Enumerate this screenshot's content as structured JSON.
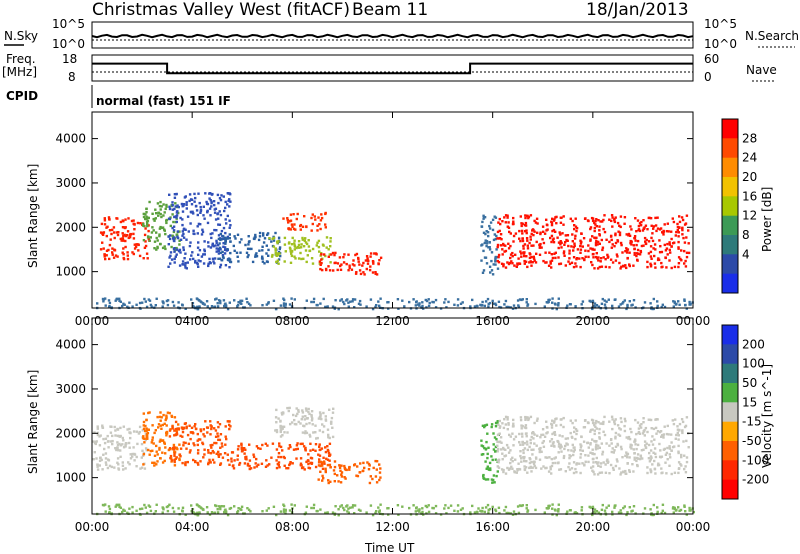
{
  "header": {
    "title": "Christmas Valley West (fitACF)",
    "beam": "Beam 11",
    "date": "18/Jan/2013",
    "cpid_label": "CPID",
    "cpid_value": "normal (fast) 151 IF"
  },
  "chart_data": [
    {
      "type": "line",
      "name": "noise-panel",
      "left_label": "N.Sky",
      "right_label": "N.Search",
      "left_ticks": [
        "10^5",
        "10^0"
      ],
      "right_ticks": [
        "10^5",
        "10^0"
      ],
      "scale": "log"
    },
    {
      "type": "line",
      "name": "freq-panel",
      "left_label": "Freq.",
      "left_unit": "[MHz]",
      "right_label": "Nave",
      "left_ticks": [
        18,
        8
      ],
      "right_ticks": [
        60,
        0
      ],
      "freq_steps": [
        {
          "x_hours": 0,
          "value": 14.7
        },
        {
          "x_hours": 3,
          "value": 11.0
        },
        {
          "x_hours": 15.1,
          "value": 14.7
        },
        {
          "x_hours": 24,
          "value": 14.7
        }
      ],
      "nave_level": 12
    },
    {
      "type": "heatmap",
      "name": "power",
      "ylabel": "Slant Range [km]",
      "xlabel": "Time UT",
      "xlim_hours": [
        0,
        24
      ],
      "ylim_km": [
        180,
        4600
      ],
      "y_ticks": [
        1000,
        2000,
        3000,
        4000
      ],
      "x_ticks": [
        "00:00",
        "04:00",
        "08:00",
        "12:00",
        "16:00",
        "20:00",
        "00:00"
      ],
      "colorbar": {
        "label": "Power [dB]",
        "ticks": [
          28,
          24,
          20,
          16,
          12,
          8,
          4
        ],
        "colors": [
          "#ff0000",
          "#ff4a00",
          "#ff8c00",
          "#f2c200",
          "#a8c800",
          "#3c9a56",
          "#2e7a7a",
          "#2c4aa8",
          "#1a2ee8"
        ]
      },
      "regions": [
        {
          "t": [
            0.3,
            2.3
          ],
          "r": [
            1300,
            2250
          ],
          "c": "#ff2000"
        },
        {
          "t": [
            2.0,
            3.5
          ],
          "r": [
            1500,
            2600
          ],
          "c": "#5aa03c"
        },
        {
          "t": [
            3.0,
            5.5
          ],
          "r": [
            1100,
            2800
          ],
          "c": "#3050b8"
        },
        {
          "t": [
            5.0,
            7.5
          ],
          "r": [
            1200,
            1900
          ],
          "c": "#2a60a0"
        },
        {
          "t": [
            7.0,
            9.5
          ],
          "r": [
            1200,
            1800
          ],
          "c": "#a0c020"
        },
        {
          "t": [
            9.0,
            11.5
          ],
          "r": [
            950,
            1450
          ],
          "c": "#ff1a00"
        },
        {
          "t": [
            7.6,
            9.4
          ],
          "r": [
            1950,
            2350
          ],
          "c": "#ff3000"
        },
        {
          "t": [
            15.5,
            16.2
          ],
          "r": [
            950,
            2300
          ],
          "c": "#3a70a0"
        },
        {
          "t": [
            16.1,
            23.8
          ],
          "r": [
            1100,
            2300
          ],
          "c": "#ff1000"
        },
        {
          "t": [
            0,
            24
          ],
          "r": [
            180,
            420
          ],
          "c": "#3a70a0"
        }
      ]
    },
    {
      "type": "heatmap",
      "name": "velocity",
      "ylabel": "Slant Range [km]",
      "xlabel": "Time UT",
      "xlim_hours": [
        0,
        24
      ],
      "ylim_km": [
        180,
        4600
      ],
      "y_ticks": [
        1000,
        2000,
        3000,
        4000
      ],
      "x_ticks": [
        "00:00",
        "04:00",
        "08:00",
        "12:00",
        "16:00",
        "20:00",
        "00:00"
      ],
      "colorbar": {
        "label": "Velocity [m s^-1]",
        "ticks": [
          200,
          100,
          50,
          15,
          -15,
          -50,
          -100,
          -200
        ],
        "colors": [
          "#1a2ee8",
          "#2c4aa8",
          "#2e7a7a",
          "#4cb040",
          "#c8c8c0",
          "#ffa800",
          "#ff6000",
          "#ff2800",
          "#ff0000"
        ]
      },
      "regions": [
        {
          "t": [
            0,
            2.2
          ],
          "r": [
            1200,
            2200
          ],
          "c": "#c8c8c0"
        },
        {
          "t": [
            2.0,
            3.5
          ],
          "r": [
            1300,
            2500
          ],
          "c": "#ff7000"
        },
        {
          "t": [
            3.0,
            5.5
          ],
          "r": [
            1300,
            2300
          ],
          "c": "#ff5000"
        },
        {
          "t": [
            5.5,
            9.5
          ],
          "r": [
            1200,
            1800
          ],
          "c": "#ff4800"
        },
        {
          "t": [
            9.0,
            11.5
          ],
          "r": [
            900,
            1400
          ],
          "c": "#ff6000"
        },
        {
          "t": [
            7.2,
            9.6
          ],
          "r": [
            1900,
            2600
          ],
          "c": "#c8c8c0"
        },
        {
          "t": [
            15.5,
            16.2
          ],
          "r": [
            900,
            2300
          ],
          "c": "#4cb040"
        },
        {
          "t": [
            16.1,
            23.8
          ],
          "r": [
            1100,
            2400
          ],
          "c": "#c8c8c0"
        },
        {
          "t": [
            0,
            24
          ],
          "r": [
            180,
            420
          ],
          "c": "#7fb85a"
        }
      ]
    }
  ],
  "x_axis_title": "Time UT"
}
